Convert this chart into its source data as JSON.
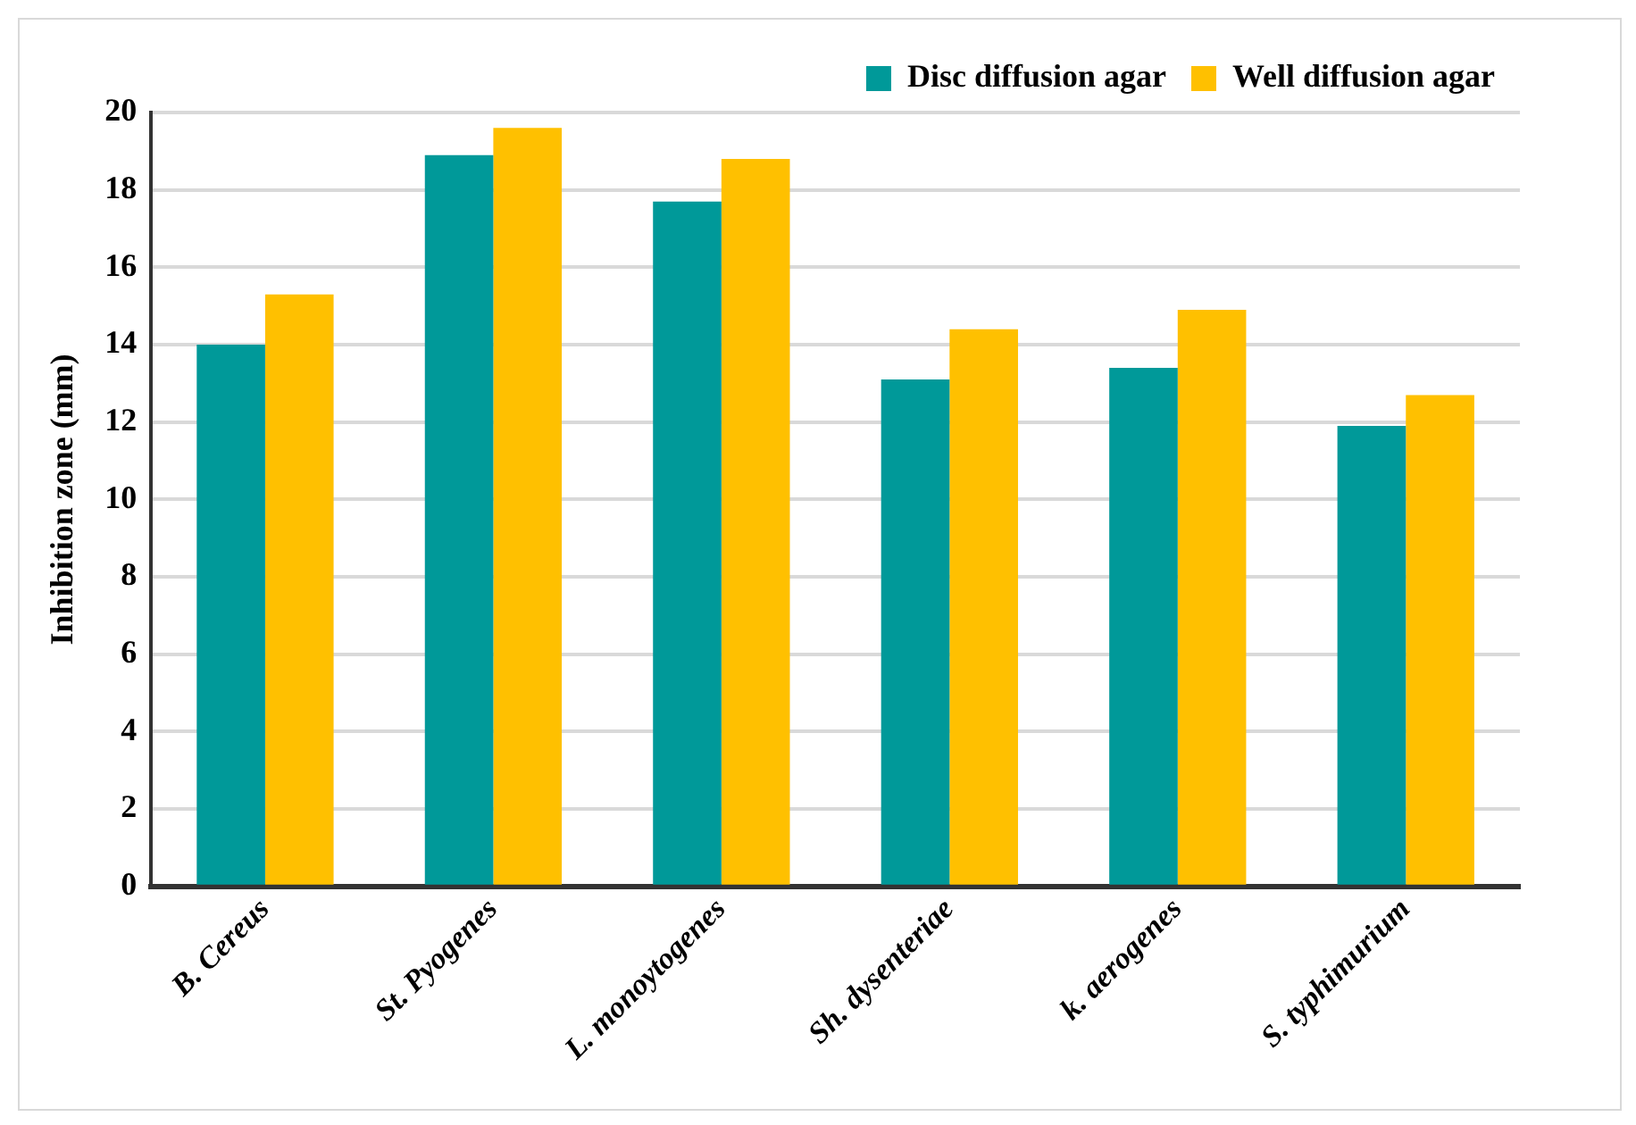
{
  "chart_data": {
    "type": "bar",
    "ylabel": "Inhibition zone (mm)",
    "categories": [
      "B. Cereus",
      "St. Pyogenes",
      "L. monoytogenes",
      "Sh. dysenteriae",
      "k. aerogenes",
      "S. typhimurium"
    ],
    "series": [
      {
        "name": "Disc diffusion agar",
        "color": "#009999",
        "values": [
          14.0,
          18.9,
          17.7,
          13.1,
          13.4,
          11.9
        ]
      },
      {
        "name": "Well diffusion agar",
        "color": "#ffc000",
        "values": [
          15.3,
          19.6,
          18.8,
          14.4,
          14.9,
          12.7
        ]
      }
    ],
    "ylim": [
      0,
      20
    ],
    "yticks": [
      0,
      2,
      4,
      6,
      8,
      10,
      12,
      14,
      16,
      18,
      20
    ],
    "grid": "y",
    "legend": "top right"
  }
}
